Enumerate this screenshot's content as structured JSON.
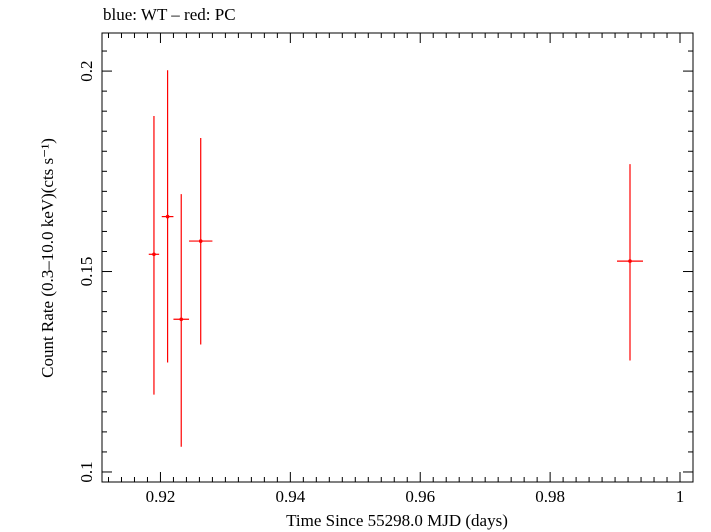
{
  "chart_data": {
    "type": "scatter",
    "title": "blue: WT – red: PC",
    "xlabel": "Time Since 55298.0 MJD (days)",
    "ylabel": "Count Rate (0.3–10.0 keV)(cts s⁻¹)",
    "xlim": [
      0.911,
      1.002
    ],
    "ylim": [
      0.0975,
      0.2095
    ],
    "x_ticks": [
      0.92,
      0.94,
      0.96,
      0.98,
      1
    ],
    "x_tick_labels": [
      "0.92",
      "0.94",
      "0.96",
      "0.98",
      "1"
    ],
    "y_ticks": [
      0.1,
      0.15,
      0.2
    ],
    "y_tick_labels": [
      "0.1",
      "0.15",
      "0.2"
    ],
    "grid": false,
    "series": [
      {
        "color": "#ff0000",
        "points": [
          {
            "x": 0.919,
            "y": 0.1543,
            "xerr": 0.0008,
            "ylo": 0.1193,
            "yhi": 0.1888
          },
          {
            "x": 0.9211,
            "y": 0.1637,
            "xerr": 0.0009,
            "ylo": 0.1273,
            "yhi": 0.2002
          },
          {
            "x": 0.9232,
            "y": 0.1381,
            "xerr": 0.0012,
            "ylo": 0.1063,
            "yhi": 0.1693
          },
          {
            "x": 0.9262,
            "y": 0.1576,
            "xerr": 0.0018,
            "ylo": 0.1318,
            "yhi": 0.1833
          },
          {
            "x": 0.9923,
            "y": 0.1526,
            "xerr": 0.002,
            "ylo": 0.1278,
            "yhi": 0.1768
          }
        ]
      }
    ]
  }
}
